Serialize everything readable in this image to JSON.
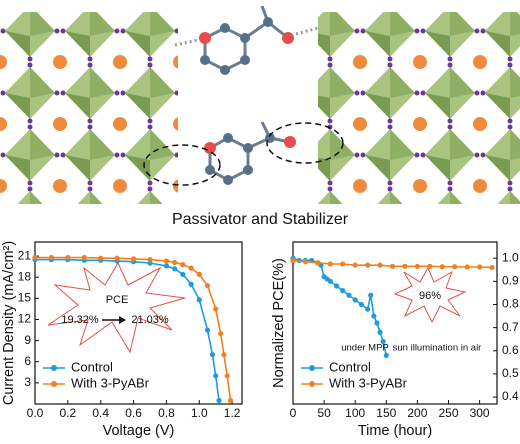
{
  "illustration": {
    "label": "Passivator and Stabilizer"
  },
  "chart_data": [
    {
      "type": "line",
      "x_label": "Voltage (V)",
      "y_label": "Current Density (mA/cm²)",
      "xlim": [
        0,
        1.26
      ],
      "ylim": [
        0,
        23
      ],
      "xticks": [
        {
          "value": 0,
          "label": "0.0"
        },
        0.2,
        0.4,
        0.6,
        0.8,
        {
          "value": 1,
          "label": "1.0"
        },
        1.2
      ],
      "yticks": [
        3,
        6,
        9,
        12,
        15,
        18,
        21
      ],
      "ytick_side": "left",
      "legend": "lower left",
      "series": [
        {
          "name": "Control",
          "color": "#1f9be0",
          "x": [
            0,
            0.1,
            0.2,
            0.3,
            0.4,
            0.5,
            0.6,
            0.7,
            0.8,
            0.85,
            0.9,
            0.95,
            1.0,
            1.05,
            1.08,
            1.1,
            1.12
          ],
          "values": [
            20.5,
            20.5,
            20.5,
            20.4,
            20.4,
            20.3,
            20.2,
            20.0,
            19.6,
            19.2,
            18.4,
            17.0,
            14.8,
            10.5,
            7.0,
            4.0,
            0.5
          ]
        },
        {
          "name": "With 3-PyABr",
          "color": "#f08020",
          "x": [
            0,
            0.1,
            0.2,
            0.3,
            0.4,
            0.5,
            0.6,
            0.7,
            0.8,
            0.85,
            0.9,
            0.95,
            1.0,
            1.05,
            1.1,
            1.13,
            1.15,
            1.17,
            1.19
          ],
          "values": [
            20.8,
            20.8,
            20.8,
            20.8,
            20.7,
            20.7,
            20.6,
            20.5,
            20.3,
            20.1,
            19.8,
            19.3,
            18.4,
            16.8,
            13.5,
            10.0,
            7.0,
            4.0,
            0.5
          ]
        }
      ],
      "annotations": [
        {
          "text": "PCE",
          "color": "#111111"
        },
        {
          "text": "19.32%",
          "color": "#1f9be0"
        },
        {
          "text": "21.03%",
          "color": "#f08020"
        }
      ]
    },
    {
      "type": "line",
      "x_label": "Time (hour)",
      "y_label": "Normalized PCE(%)",
      "xlim": [
        0,
        328
      ],
      "ylim": [
        0.37,
        1.07
      ],
      "xticks": [
        0,
        50,
        100,
        150,
        200,
        250,
        300
      ],
      "yticks": [
        0.4,
        0.5,
        0.6,
        0.7,
        0.8,
        0.9,
        {
          "value": 1,
          "label": "1.0"
        }
      ],
      "ytick_side": "right",
      "legend": "lower left",
      "series": [
        {
          "name": "Control",
          "color": "#1f9be0",
          "x": [
            0,
            10,
            20,
            30,
            40,
            45,
            50,
            55,
            60,
            70,
            80,
            90,
            100,
            110,
            120,
            125,
            130,
            135,
            140,
            145,
            150
          ],
          "values": [
            1.0,
            0.99,
            0.99,
            0.99,
            0.98,
            0.97,
            0.92,
            0.91,
            0.9,
            0.88,
            0.86,
            0.84,
            0.82,
            0.8,
            0.78,
            0.84,
            0.75,
            0.72,
            0.68,
            0.64,
            0.58
          ]
        },
        {
          "name": "With 3-PyABr",
          "color": "#f08020",
          "x": [
            0,
            20,
            40,
            60,
            80,
            100,
            120,
            140,
            160,
            180,
            200,
            220,
            240,
            260,
            280,
            300,
            320
          ],
          "values": [
            0.99,
            0.985,
            0.98,
            0.975,
            0.975,
            0.97,
            0.97,
            0.97,
            0.965,
            0.965,
            0.965,
            0.965,
            0.963,
            0.963,
            0.962,
            0.962,
            0.96
          ]
        }
      ],
      "annotations": [
        {
          "text": "96%",
          "color": "#f08020"
        },
        {
          "text": "under MPP",
          "color": "#111111"
        },
        {
          "text": "sun illumination in air",
          "color": "#111111"
        }
      ]
    }
  ]
}
